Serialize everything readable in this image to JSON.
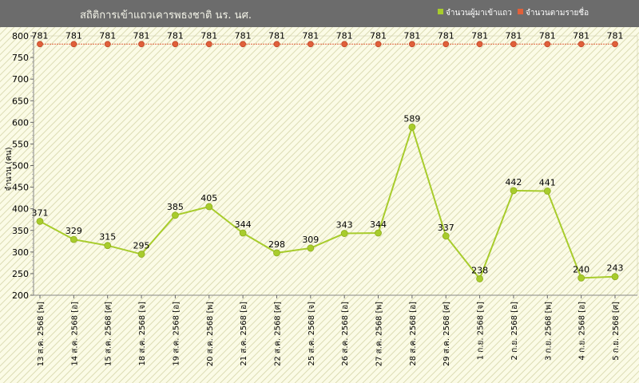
{
  "chart_data": {
    "type": "line",
    "title": "สถิติการเข้าแถวเคารพธงชาติ นร. นศ.",
    "ylabel": "จำนวน (คน)",
    "xlabel": "",
    "ylim": [
      200,
      800
    ],
    "yticks": [
      200,
      250,
      300,
      350,
      400,
      450,
      500,
      550,
      600,
      650,
      700,
      750,
      800
    ],
    "grid": false,
    "legend_position": "top-right",
    "categories": [
      "13 ส.ค. 2568 [พ]",
      "14 ส.ค. 2568 [อ]",
      "15 ส.ค. 2568 [ศ]",
      "18 ส.ค. 2568 [จ]",
      "19 ส.ค. 2568 [อ]",
      "20 ส.ค. 2568 [พ]",
      "21 ส.ค. 2568 [อ]",
      "22 ส.ค. 2568 [ศ]",
      "25 ส.ค. 2568 [จ]",
      "26 ส.ค. 2568 [อ]",
      "27 ส.ค. 2568 [พ]",
      "28 ส.ค. 2568 [อ]",
      "29 ส.ค. 2568 [ศ]",
      "1 ก.ย. 2568 [จ]",
      "2 ก.ย. 2568 [อ]",
      "3 ก.ย. 2568 [พ]",
      "4 ก.ย. 2568 [อ]",
      "5 ก.ย. 2568 [ศ]"
    ],
    "series": [
      {
        "name": "จำนวนผู้มาเข้าแถว",
        "color": "#a8cc2c",
        "values": [
          371,
          329,
          315,
          295,
          385,
          405,
          344,
          298,
          309,
          343,
          344,
          589,
          337,
          238,
          442,
          441,
          240,
          243
        ]
      },
      {
        "name": "จำนวนตามรายชื่อ",
        "color": "#e0603a",
        "values": [
          781,
          781,
          781,
          781,
          781,
          781,
          781,
          781,
          781,
          781,
          781,
          781,
          781,
          781,
          781,
          781,
          781,
          781
        ]
      }
    ]
  },
  "colors": {
    "header_bg": "#6c6c6c",
    "plot_bg": "#fbfbe6",
    "hatch": "#d9d9b0"
  }
}
